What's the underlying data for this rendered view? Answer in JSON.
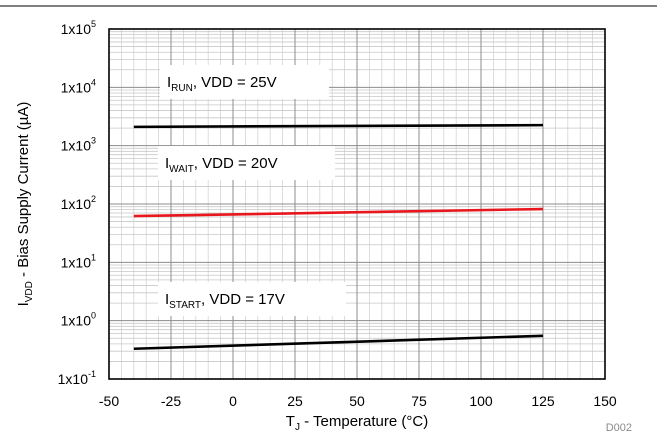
{
  "chart_data": {
    "type": "line",
    "x_axis": {
      "label_main": "T",
      "label_sub": "J",
      "label_rest": " - Temperature (°C)",
      "range": [
        -50,
        150
      ],
      "ticks": [
        -50,
        -25,
        0,
        25,
        50,
        75,
        100,
        125,
        150
      ],
      "tick_labels": [
        "-50",
        "-25",
        "0",
        "25",
        "50",
        "75",
        "100",
        "125",
        "150"
      ],
      "grid": true
    },
    "y_axis": {
      "label_main": "I",
      "label_sub": "VDD",
      "label_rest": " - Bias Supply Current (µA)",
      "scale": "log",
      "range": [
        0.1,
        100000
      ],
      "ticks": [
        0.1,
        1,
        10,
        100,
        1000,
        10000,
        100000
      ],
      "tick_base": "1x10",
      "tick_exponents": [
        "-1",
        "0",
        "1",
        "2",
        "3",
        "4",
        "5"
      ],
      "grid": true
    },
    "series": [
      {
        "key": "run",
        "color": "#000000",
        "x": [
          -40,
          125
        ],
        "y": [
          2100,
          2250
        ]
      },
      {
        "key": "wait",
        "color": "#e8171d",
        "x": [
          -40,
          125
        ],
        "y": [
          62,
          82
        ]
      },
      {
        "key": "start",
        "color": "#000000",
        "x": [
          -40,
          125
        ],
        "y": [
          0.33,
          0.55
        ]
      }
    ],
    "annotations": [
      {
        "key": "run",
        "main": "I",
        "sub": "RUN",
        "rest": ", VDD = 25V"
      },
      {
        "key": "wait",
        "main": "I",
        "sub": "WAIT",
        "rest": ", VDD = 20V"
      },
      {
        "key": "start",
        "main": "I",
        "sub": "START",
        "rest": ", VDD = 17V"
      }
    ],
    "figure_id": "D002"
  }
}
